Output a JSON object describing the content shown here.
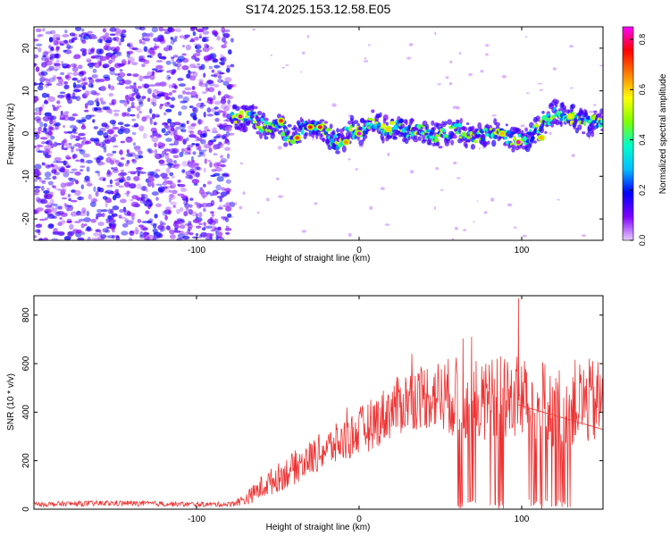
{
  "title": "S174.2025.153.12.58.E05",
  "chart_data": [
    {
      "type": "heatmap",
      "xlabel": "Height of straight line (km)",
      "ylabel": "Frequency (Hz)",
      "xlim": [
        -200,
        150
      ],
      "ylim": [
        -25,
        25
      ],
      "xticks": [
        -100,
        0,
        100
      ],
      "yticks": [
        -20,
        -10,
        0,
        10,
        20
      ],
      "colorbar": {
        "label": "Normalized spectral amplitude",
        "range": [
          0.0,
          0.85
        ],
        "ticks": [
          "0.0",
          "0.2",
          "0.4",
          "0.6",
          "0.8"
        ],
        "colormap": [
          "#e8ccff",
          "#7f00ff",
          "#0000ff",
          "#00bfff",
          "#00ffcc",
          "#7fff00",
          "#ffff00",
          "#ff8000",
          "#ff0000",
          "#ff00ff"
        ]
      },
      "noise_region": {
        "x_from": -200,
        "x_to": -78
      },
      "signal_track": {
        "x": [
          -78,
          -72,
          -65,
          -60,
          -55,
          -50,
          -45,
          -40,
          -35,
          -30,
          -25,
          -20,
          -15,
          -10,
          -5,
          0,
          5,
          10,
          15,
          20,
          25,
          30,
          40,
          50,
          60,
          70,
          80,
          90,
          100,
          110,
          120,
          130,
          140,
          150
        ],
        "freq_hz": [
          4.5,
          3.5,
          4.0,
          2.0,
          1.5,
          2.5,
          0.0,
          -1.0,
          1.5,
          1.5,
          2.0,
          0.5,
          -2.0,
          -1.5,
          1.0,
          0.0,
          2.0,
          3.0,
          1.0,
          1.0,
          2.0,
          0.5,
          0.5,
          -0.5,
          1.0,
          -1.0,
          0.5,
          -0.5,
          -2.0,
          1.0,
          5.0,
          4.0,
          2.5,
          2.5
        ]
      },
      "peaks": [
        {
          "x": -73,
          "freq_hz": 4,
          "amp": 0.82
        },
        {
          "x": -48,
          "freq_hz": 3,
          "amp": 0.72
        },
        {
          "x": -38,
          "freq_hz": -1,
          "amp": 0.7
        },
        {
          "x": -30,
          "freq_hz": 1.5,
          "amp": 0.74
        },
        {
          "x": -24,
          "freq_hz": 1.5,
          "amp": 0.78
        },
        {
          "x": -8,
          "freq_hz": -2,
          "amp": 0.65
        },
        {
          "x": 0,
          "freq_hz": 0,
          "amp": 0.85
        },
        {
          "x": 18,
          "freq_hz": 1,
          "amp": 0.6
        },
        {
          "x": 88,
          "freq_hz": 0,
          "amp": 0.62
        },
        {
          "x": 98,
          "freq_hz": -2,
          "amp": 0.84
        },
        {
          "x": 112,
          "freq_hz": -1,
          "amp": 0.62
        },
        {
          "x": 130,
          "freq_hz": 4,
          "amp": 0.58
        }
      ]
    },
    {
      "type": "line",
      "xlabel": "Height of straight line (km)",
      "ylabel": "SNR (10 * v/v)",
      "xlim": [
        -200,
        150
      ],
      "ylim": [
        0,
        880
      ],
      "xticks": [
        -100,
        0,
        100
      ],
      "yticks": [
        0,
        200,
        400,
        600,
        800
      ],
      "color": "#ee3333",
      "envelope": {
        "x": [
          -200,
          -150,
          -100,
          -80,
          -70,
          -60,
          -50,
          -40,
          -30,
          -20,
          -10,
          0,
          10,
          20,
          30,
          40,
          50,
          60,
          70,
          80,
          90,
          100,
          110,
          120,
          130,
          140,
          150
        ],
        "mean": [
          20,
          25,
          20,
          20,
          40,
          90,
          130,
          170,
          210,
          250,
          280,
          320,
          360,
          410,
          450,
          470,
          470,
          460,
          460,
          450,
          460,
          460,
          450,
          430,
          440,
          440,
          440
        ],
        "spread": [
          10,
          12,
          10,
          10,
          25,
          50,
          60,
          70,
          75,
          80,
          90,
          100,
          110,
          120,
          130,
          140,
          150,
          170,
          180,
          180,
          180,
          180,
          180,
          180,
          180,
          180,
          180
        ]
      },
      "dropouts": [
        {
          "x_from": 60,
          "x_to": 75
        },
        {
          "x_from": 80,
          "x_to": 90
        },
        {
          "x_from": 103,
          "x_to": 130
        }
      ],
      "max_spike": {
        "x": 98,
        "y": 870
      }
    }
  ]
}
